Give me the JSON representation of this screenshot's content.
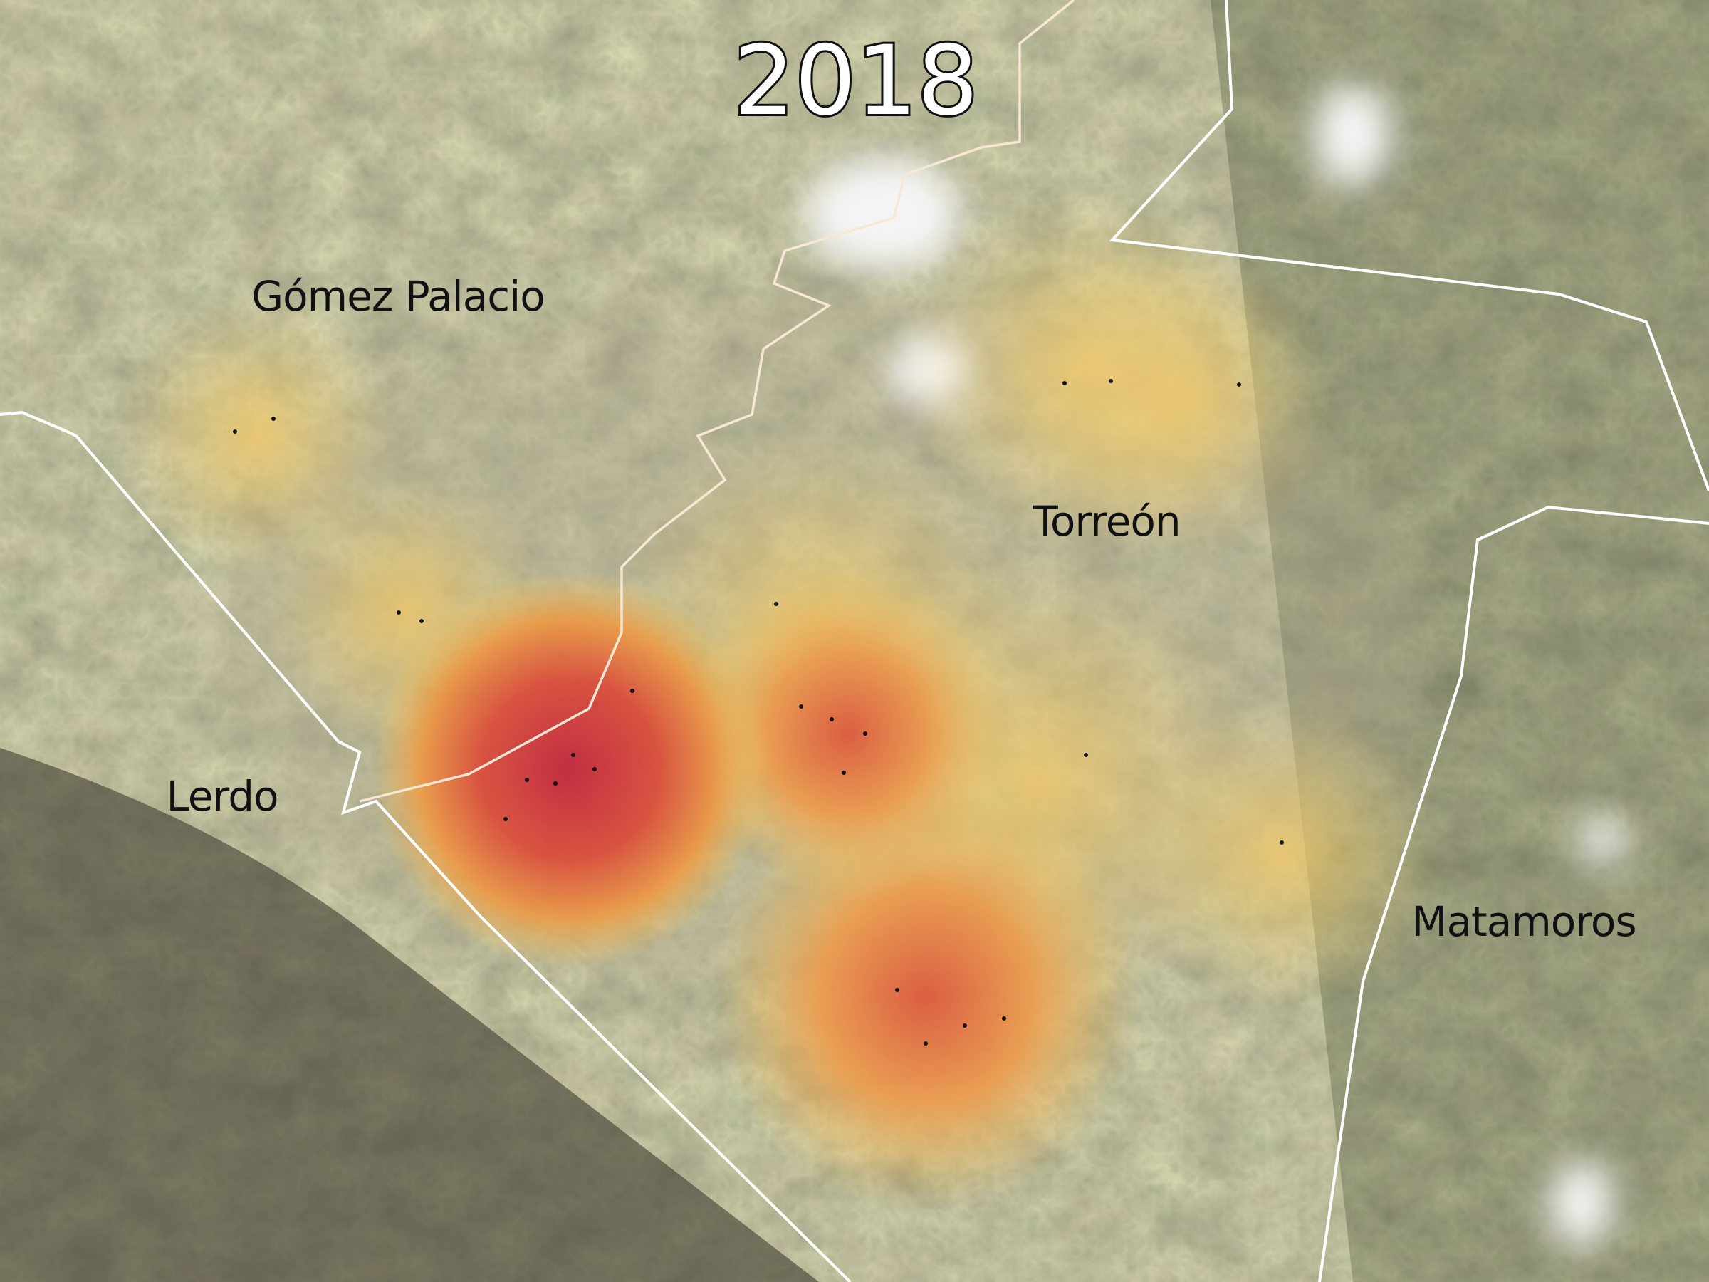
{
  "title": "2018",
  "places": [
    {
      "label": "Gómez Palacio"
    },
    {
      "label": "Torreón"
    },
    {
      "label": "Lerdo"
    },
    {
      "label": "Matamoros"
    }
  ]
}
